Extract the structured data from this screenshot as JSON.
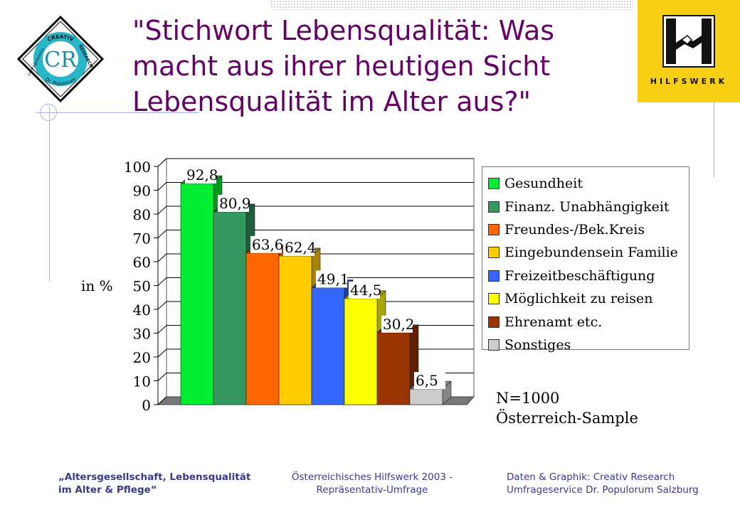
{
  "title": "\"Stichwort Lebensqualität: Was macht aus ihrer heutigen Sicht Lebensqualität im Alter aus?\"",
  "logo_left": {
    "top": "CREATIV",
    "right": "RESEARCH",
    "left": "Umfrageservice",
    "bottom": "Dr. Populorum",
    "monogram": "CR"
  },
  "logo_right": {
    "text": "HILFSWERK",
    "colors": {
      "background": "#f7cf15"
    }
  },
  "chart_data": {
    "type": "bar",
    "title": "",
    "xlabel": "",
    "ylabel": "in %",
    "ylim": [
      0,
      100
    ],
    "yticks": [
      0,
      10,
      20,
      30,
      40,
      50,
      60,
      70,
      80,
      90,
      100
    ],
    "grid": true,
    "legend_position": "right",
    "categories": [
      "Gesundheit",
      "Finanz. Unabhängigkeit",
      "Freundes-/Bek.Kreis",
      "Eingebundensein Familie",
      "Freizeitbeschäftigung",
      "Möglichkeit zu reisen",
      "Ehrenamt etc.",
      "Sonstiges"
    ],
    "values": [
      92.8,
      80.9,
      63.6,
      62.4,
      49.1,
      44.5,
      30.2,
      6.5
    ],
    "value_labels": [
      "92,8",
      "80,9",
      "63,6",
      "62,4",
      "49,1",
      "44,5",
      "30,2",
      "6,5"
    ],
    "colors": [
      "#00ee33",
      "#33995e",
      "#ff6600",
      "#ffcc00",
      "#3366ff",
      "#ffff00",
      "#993300",
      "#cccccc"
    ],
    "side_colors": [
      "#009922",
      "#1f5f3a",
      "#a63c00",
      "#a8850a",
      "#1d3fa6",
      "#a6a600",
      "#5f1f00",
      "#868686"
    ],
    "annotations": [
      "N=1000",
      "Österreich-Sample"
    ]
  },
  "footer": {
    "left_line1": "„Altersgesellschaft, Lebensqualität",
    "left_line2": "im Alter & Pflege“",
    "mid_line1": "Österreichisches Hilfswerk 2003 -",
    "mid_line2": "Repräsentativ-Umfrage",
    "right_line1": "Daten & Graphik: Creativ Research",
    "right_line2": "Umfrageservice Dr. Populorum Salzburg"
  }
}
